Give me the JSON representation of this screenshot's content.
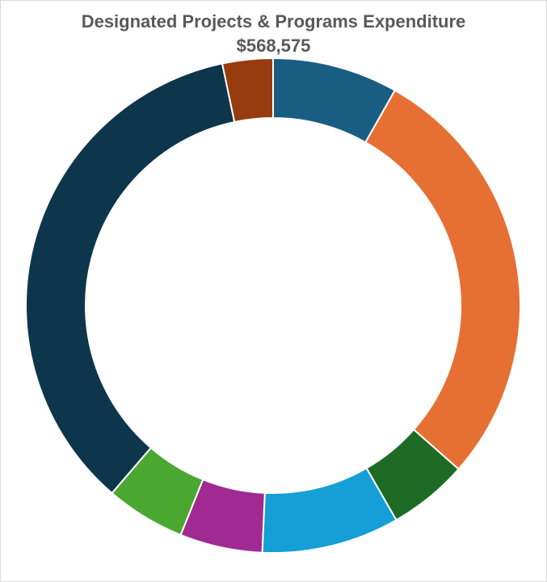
{
  "chart_data": {
    "type": "pie",
    "variant": "donut",
    "title": "Designated Projects & Programs Expenditure",
    "subtitle": "$568,575",
    "legend": "none",
    "data_labels": "none",
    "start_angle_deg": 0,
    "direction": "clockwise",
    "slices": [
      {
        "value": 8.2,
        "color": "#1a5d82"
      },
      {
        "value": 28.3,
        "color": "#e67034"
      },
      {
        "value": 5.2,
        "color": "#1d6b24"
      },
      {
        "value": 9.0,
        "color": "#159fd6"
      },
      {
        "value": 5.4,
        "color": "#a02a91"
      },
      {
        "value": 5.2,
        "color": "#4aa730"
      },
      {
        "value": 35.4,
        "color": "#0d364d"
      },
      {
        "value": 3.3,
        "color": "#973c0e"
      }
    ],
    "slice_border_color": "#ffffff"
  }
}
